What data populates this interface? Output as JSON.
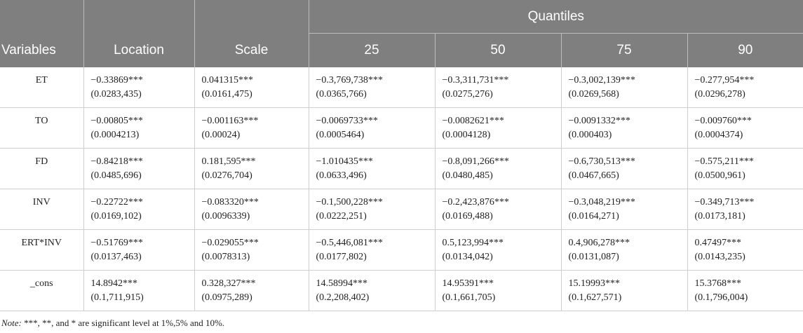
{
  "header": {
    "variables": "Variables",
    "location": "Location",
    "scale": "Scale",
    "quantiles": "Quantiles",
    "q25": "25",
    "q50": "50",
    "q75": "75",
    "q90": "90"
  },
  "rows": [
    {
      "name": "ET",
      "location": {
        "coef": "−0.33869***",
        "se": "(0.0283,435)"
      },
      "scale": {
        "coef": "0.041315***",
        "se": "(0.0161,475)"
      },
      "q25": {
        "coef": "−0.3,769,738***",
        "se": "(0.0365,766)"
      },
      "q50": {
        "coef": "−0.3,311,731***",
        "se": "(0.0275,276)"
      },
      "q75": {
        "coef": "−0.3,002,139***",
        "se": "(0.0269,568)"
      },
      "q90": {
        "coef": "−0.277,954***",
        "se": "(0.0296,278)"
      }
    },
    {
      "name": "TO",
      "location": {
        "coef": "−0.00805***",
        "se": "(0.0004213)"
      },
      "scale": {
        "coef": "−0.001163***",
        "se": "(0.00024)"
      },
      "q25": {
        "coef": "−0.0069733***",
        "se": "(0.0005464)"
      },
      "q50": {
        "coef": "−0.0082621***",
        "se": "(0.0004128)"
      },
      "q75": {
        "coef": "−0.0091332***",
        "se": "(0.000403)"
      },
      "q90": {
        "coef": "−0.009760***",
        "se": "(0.0004374)"
      }
    },
    {
      "name": "FD",
      "location": {
        "coef": "−0.84218***",
        "se": "(0.0485,696)"
      },
      "scale": {
        "coef": "0.181,595***",
        "se": "(0.0276,704)"
      },
      "q25": {
        "coef": "−1.010435***",
        "se": "(0.0633,496)"
      },
      "q50": {
        "coef": "−0.8,091,266***",
        "se": "(0.0480,485)"
      },
      "q75": {
        "coef": "−0.6,730,513***",
        "se": "(0.0467,665)"
      },
      "q90": {
        "coef": "−0.575,211***",
        "se": "(0.0500,961)"
      }
    },
    {
      "name": "INV",
      "location": {
        "coef": "−0.22722***",
        "se": "(0.0169,102)"
      },
      "scale": {
        "coef": "−0.083320***",
        "se": "(0.0096339)"
      },
      "q25": {
        "coef": "−0.1,500,228***",
        "se": "(0.0222,251)"
      },
      "q50": {
        "coef": "−0.2,423,876***",
        "se": "(0.0169,488)"
      },
      "q75": {
        "coef": "−0.3,048,219***",
        "se": "(0.0164,271)"
      },
      "q90": {
        "coef": "−0.349,713***",
        "se": "(0.0173,181)"
      }
    },
    {
      "name": "ERT*INV",
      "location": {
        "coef": "−0.51769***",
        "se": "(0.0137,463)"
      },
      "scale": {
        "coef": "−0.029055***",
        "se": "(0.0078313)"
      },
      "q25": {
        "coef": "−0.5,446,081***",
        "se": "(0.0177,802)"
      },
      "q50": {
        "coef": "0.5,123,994***",
        "se": "(0.0134,042)"
      },
      "q75": {
        "coef": "0.4,906,278***",
        "se": "(0.0131,087)"
      },
      "q90": {
        "coef": "0.47497***",
        "se": "(0.0143,235)"
      }
    },
    {
      "name": "_cons",
      "location": {
        "coef": "14.8942***",
        "se": "(0.1,711,915)"
      },
      "scale": {
        "coef": "0.328,327***",
        "se": "(0.0975,289)"
      },
      "q25": {
        "coef": "14.58994***",
        "se": "(0.2,208,402)"
      },
      "q50": {
        "coef": "14.95391***",
        "se": "(0.1,661,705)"
      },
      "q75": {
        "coef": "15.19993***",
        "se": "(0.1,627,571)"
      },
      "q90": {
        "coef": "15.3768***",
        "se": "(0.1,796,004)"
      }
    }
  ],
  "note": {
    "lead": "Note:",
    "text": " ***, **, and * are significant level at 1%,5% and 10%."
  }
}
